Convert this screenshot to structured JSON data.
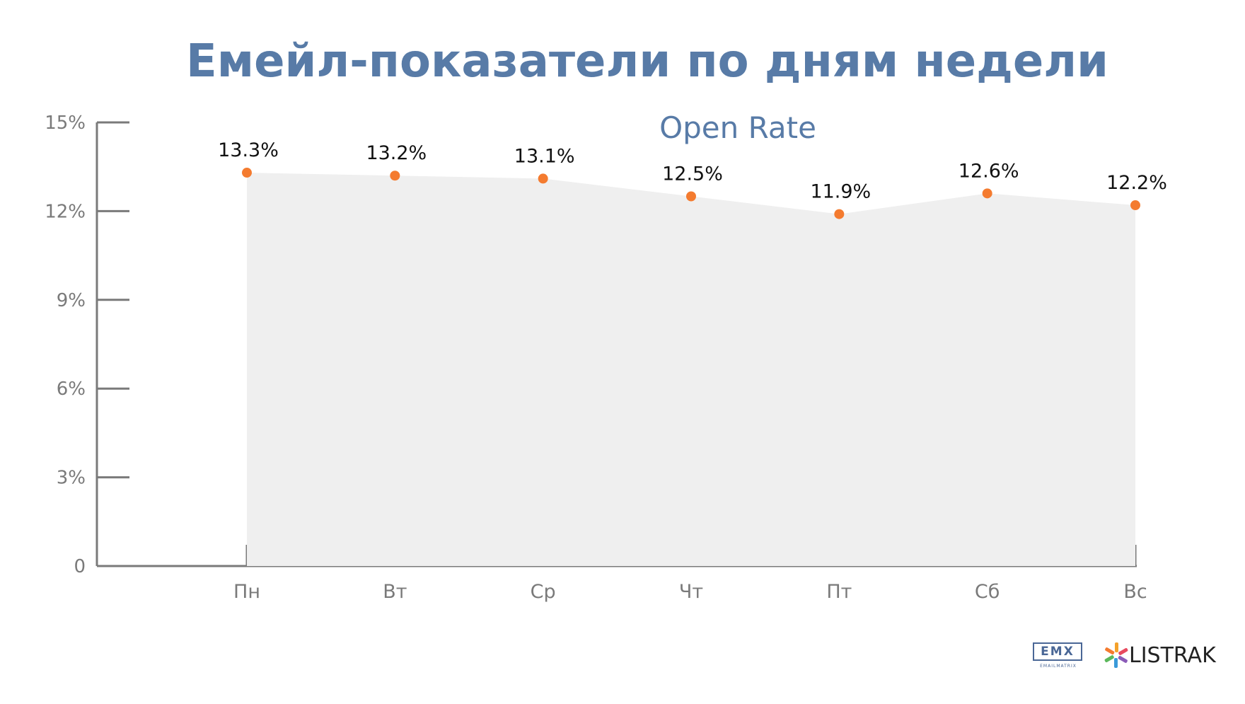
{
  "title": "Емейл-показатели по дням недели",
  "chart_data": {
    "type": "area",
    "subtitle": "Open Rate",
    "categories": [
      "Пн",
      "Вт",
      "Ср",
      "Чт",
      "Пт",
      "Сб",
      "Вс"
    ],
    "values": [
      13.3,
      13.2,
      13.1,
      12.5,
      11.9,
      12.6,
      12.2
    ],
    "data_labels": [
      "13.3%",
      "13.2%",
      "13.1%",
      "12.5%",
      "11.9%",
      "12.6%",
      "12.2%"
    ],
    "y_ticks": [
      0,
      3,
      6,
      9,
      12,
      15
    ],
    "y_tick_labels": [
      "0",
      "3%",
      "6%",
      "9%",
      "12%",
      "15%"
    ],
    "ylim": [
      0,
      15
    ],
    "grid": false,
    "colors": {
      "title": "#587ba7",
      "area_fill": "#efefef",
      "marker": "#f47b2f",
      "axis": "#7a7a7a"
    }
  },
  "logos": {
    "emx": "EMX",
    "emx_subtitle": "EMAILMATRIX",
    "listrak": "LISTRAK"
  }
}
